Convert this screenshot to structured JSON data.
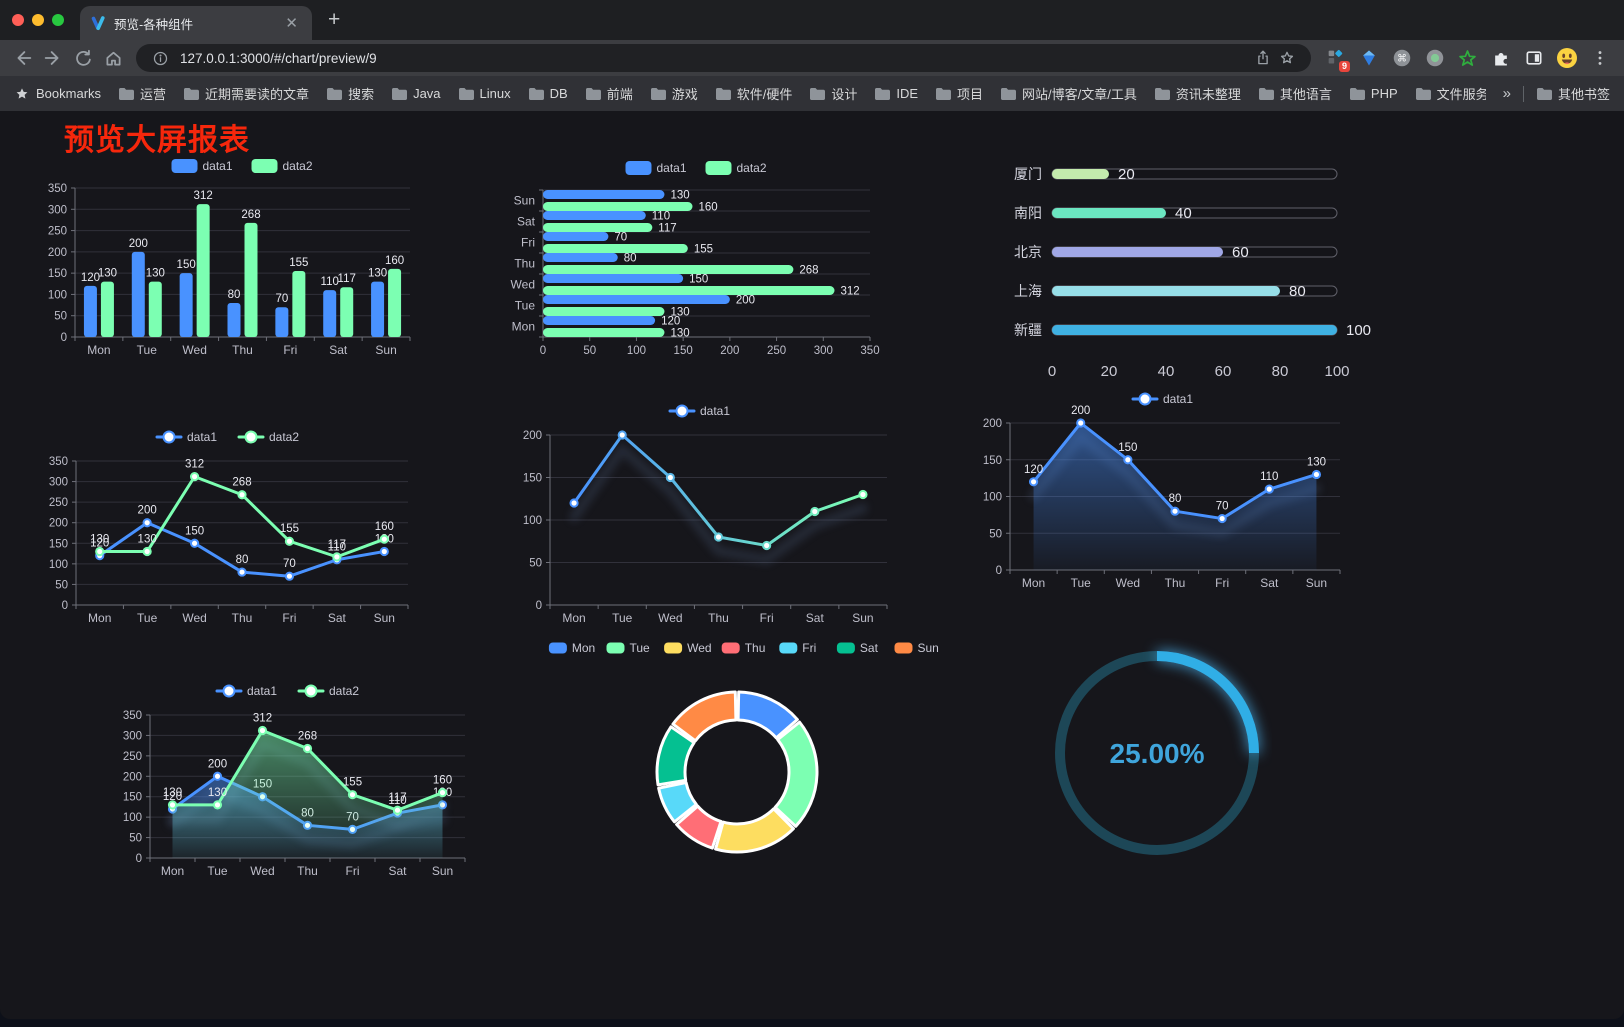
{
  "browser": {
    "tab_title": "预览-各种组件",
    "url": "127.0.0.1:3000/#/chart/preview/9",
    "traffic_lights": [
      "#ff5f57",
      "#febc2e",
      "#28c840"
    ],
    "bookmarks_label": "Bookmarks",
    "bookmarks": [
      "运营",
      "近期需要读的文章",
      "搜索",
      "Java",
      "Linux",
      "DB",
      "前端",
      "游戏",
      "软件/硬件",
      "设计",
      "IDE",
      "项目",
      "网站/博客/文章/工具",
      "资讯未整理",
      "其他语言",
      "PHP",
      "文件服务器"
    ],
    "bookmarks_overflow": "»",
    "other_bookmarks": "其他书签",
    "extension_badge": "9"
  },
  "page": {
    "title": "预览大屏报表",
    "title_color": "#f6270c"
  },
  "chart_data": [
    {
      "id": "bar-grouped",
      "type": "bar",
      "categories": [
        "Mon",
        "Tue",
        "Wed",
        "Thu",
        "Fri",
        "Sat",
        "Sun"
      ],
      "series": [
        {
          "name": "data1",
          "color": "#4992ff",
          "values": [
            120,
            200,
            150,
            80,
            70,
            110,
            130
          ]
        },
        {
          "name": "data2",
          "color": "#7cffb2",
          "values": [
            130,
            130,
            312,
            268,
            155,
            117,
            160
          ]
        }
      ],
      "ylim": [
        0,
        350
      ],
      "ytick_step": 50,
      "legend_position": "top",
      "grid": true
    },
    {
      "id": "bar-horizontal",
      "type": "bar-horizontal",
      "categories": [
        "Mon",
        "Tue",
        "Wed",
        "Thu",
        "Fri",
        "Sat",
        "Sun"
      ],
      "series": [
        {
          "name": "data1",
          "color": "#4992ff",
          "values": [
            120,
            200,
            150,
            80,
            70,
            110,
            130
          ]
        },
        {
          "name": "data2",
          "color": "#7cffb2",
          "values": [
            130,
            130,
            312,
            268,
            155,
            117,
            160
          ]
        }
      ],
      "xlim": [
        0,
        350
      ],
      "xtick_step": 50,
      "legend_position": "top",
      "grid": true
    },
    {
      "id": "progress-list",
      "type": "progress-bars",
      "max": 100,
      "xticks": [
        0,
        20,
        40,
        60,
        80,
        100
      ],
      "items": [
        {
          "label": "厦门",
          "value": 20,
          "color": "#c4ebad"
        },
        {
          "label": "南阳",
          "value": 40,
          "color": "#6be6c1"
        },
        {
          "label": "北京",
          "value": 60,
          "color": "#a0a7e6"
        },
        {
          "label": "上海",
          "value": 80,
          "color": "#96dee8"
        },
        {
          "label": "新疆",
          "value": 100,
          "color": "#3fb1e3"
        }
      ]
    },
    {
      "id": "line-dual",
      "type": "line",
      "categories": [
        "Mon",
        "Tue",
        "Wed",
        "Thu",
        "Fri",
        "Sat",
        "Sun"
      ],
      "series": [
        {
          "name": "data1",
          "color": "#4992ff",
          "values": [
            120,
            200,
            150,
            80,
            70,
            110,
            130
          ],
          "labels": true
        },
        {
          "name": "data2",
          "color": "#7cffb2",
          "values": [
            130,
            130,
            312,
            268,
            155,
            117,
            160
          ],
          "labels": true
        }
      ],
      "ylim": [
        0,
        350
      ],
      "ytick_step": 50,
      "legend_position": "top",
      "grid": true
    },
    {
      "id": "line-gradient",
      "type": "line",
      "categories": [
        "Mon",
        "Tue",
        "Wed",
        "Thu",
        "Fri",
        "Sat",
        "Sun"
      ],
      "series": [
        {
          "name": "data1",
          "gradient": [
            "#4992ff",
            "#7cffb2"
          ],
          "values": [
            120,
            200,
            150,
            80,
            70,
            110,
            130
          ],
          "labels": false
        }
      ],
      "ylim": [
        0,
        200
      ],
      "ytick_step": 50,
      "shadow": true,
      "legend_position": "top",
      "grid": true
    },
    {
      "id": "area-single",
      "type": "area",
      "categories": [
        "Mon",
        "Tue",
        "Wed",
        "Thu",
        "Fri",
        "Sat",
        "Sun"
      ],
      "series": [
        {
          "name": "data1",
          "color": "#4992ff",
          "values": [
            120,
            200,
            150,
            80,
            70,
            110,
            130
          ],
          "labels": true,
          "area": true
        }
      ],
      "ylim": [
        0,
        200
      ],
      "ytick_step": 50,
      "shadow": true,
      "legend_position": "top",
      "grid": true
    },
    {
      "id": "area-dual",
      "type": "area",
      "categories": [
        "Mon",
        "Tue",
        "Wed",
        "Thu",
        "Fri",
        "Sat",
        "Sun"
      ],
      "series": [
        {
          "name": "data1",
          "color": "#4992ff",
          "values": [
            120,
            200,
            150,
            80,
            70,
            110,
            130
          ],
          "labels": true,
          "area": true
        },
        {
          "name": "data2",
          "color": "#7cffb2",
          "values": [
            130,
            130,
            312,
            268,
            155,
            117,
            160
          ],
          "labels": true,
          "area": true
        }
      ],
      "ylim": [
        0,
        350
      ],
      "ytick_step": 50,
      "shadow": true,
      "legend_position": "top",
      "grid": true
    },
    {
      "id": "donut",
      "type": "pie",
      "donut": true,
      "labels": [
        "Mon",
        "Tue",
        "Wed",
        "Thu",
        "Fri",
        "Sat",
        "Sun"
      ],
      "values": [
        120,
        200,
        150,
        80,
        70,
        110,
        130
      ],
      "colors": [
        "#4992ff",
        "#7cffb2",
        "#fddd60",
        "#ff6e76",
        "#58d9f9",
        "#05c091",
        "#ff8a45"
      ],
      "legend_position": "top"
    },
    {
      "id": "gauge",
      "type": "gauge",
      "value": 25,
      "max": 100,
      "display": "25.00%",
      "color": "#30aee6",
      "track_color": "#1d4757",
      "text_color": "#3fa5dc"
    }
  ]
}
